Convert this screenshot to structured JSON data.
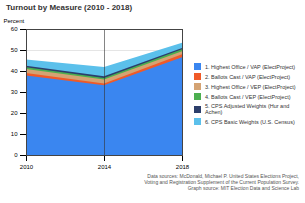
{
  "chart_data": {
    "type": "area",
    "title": "Turnout by Measure (2010 - 2018)",
    "y_label": "Percent",
    "x": [
      2010,
      2014,
      2018
    ],
    "xlim": [
      2010,
      2018
    ],
    "xticks": [
      2010,
      2014,
      2018
    ],
    "ylim": [
      0,
      60
    ],
    "yticks": [
      0,
      10,
      20,
      30,
      40,
      50,
      60
    ],
    "grid": true,
    "legend": "right",
    "series": [
      {
        "name": "1. Highest Office / VAP (ElectProject)",
        "color": "#3a86f0",
        "values": [
          37.9,
          33.2,
          46.5
        ]
      },
      {
        "name": "2. Ballots Cast / VAP (ElectProject)",
        "color": "#f05a28",
        "values": [
          39.0,
          34.0,
          48.0
        ]
      },
      {
        "name": "3. Highest Office / VEP (ElectProject)",
        "color": "#d4a373",
        "values": [
          40.9,
          36.0,
          49.4
        ]
      },
      {
        "name": "4. Ballots Cast / VEP (ElectProject)",
        "color": "#4caf50",
        "values": [
          41.8,
          36.7,
          50.3
        ]
      },
      {
        "name": "5. CPS Adjusted Weights (Hur and Achen)",
        "color": "#2c3e6b",
        "values": [
          42.5,
          37.5,
          51.0
        ]
      },
      {
        "name": "6. CPS Basic Weights (U.S. Census)",
        "color": "#5bc0eb",
        "values": [
          45.5,
          41.9,
          53.4
        ]
      }
    ],
    "source": [
      "Data sources: McDonald, Michael P. United States Elections Project,",
      "Voting and Registration Supplement of the Current Population Survey.",
      "Graph source: MIT Election Data and Science Lab"
    ]
  }
}
